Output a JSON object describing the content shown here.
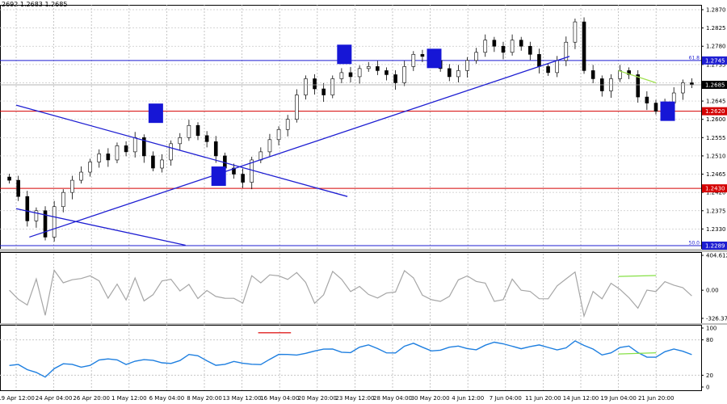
{
  "header": {
    "quote": "2692 1.2683 1.2685"
  },
  "chart_data": {
    "type": "candlestick",
    "x_ticks": [
      "19 Apr 12:00",
      "24 Apr 04:00",
      "26 Apr 20:00",
      "1 May 12:00",
      "6 May 04:00",
      "8 May 20:00",
      "13 May 12:00",
      "16 May 04:00",
      "20 May 20:00",
      "23 May 12:00",
      "28 May 04:00",
      "30 May 20:00",
      "4 Jun 12:00",
      "7 Jun 04:00",
      "11 Jun 20:00",
      "14 Jun 12:00",
      "19 Jun 04:00",
      "21 Jun 20:00"
    ],
    "price_panel": {
      "ylim": [
        1.2289,
        1.287
      ],
      "y_ticks": [
        "1.2870",
        "1.2825",
        "1.2780",
        "1.2735",
        "1.2690",
        "1.2645",
        "1.2600",
        "1.2555",
        "1.2510",
        "1.2465",
        "1.2420",
        "1.2375",
        "1.2330"
      ],
      "candles": [
        1.245,
        1.241,
        1.235,
        1.2375,
        1.231,
        1.2385,
        1.242,
        1.245,
        1.247,
        1.2495,
        1.2515,
        1.25,
        1.2535,
        1.252,
        1.2555,
        1.251,
        1.248,
        1.25,
        1.254,
        1.2555,
        1.2585,
        1.256,
        1.2545,
        1.251,
        1.248,
        1.2465,
        1.2445,
        1.25,
        1.252,
        1.255,
        1.2575,
        1.26,
        1.266,
        1.27,
        1.2675,
        1.266,
        1.27,
        1.2715,
        1.2705,
        1.2725,
        1.273,
        1.272,
        1.271,
        1.269,
        1.273,
        1.276,
        1.2755,
        1.2745,
        1.2725,
        1.2705,
        1.272,
        1.2745,
        1.2765,
        1.2795,
        1.278,
        1.2765,
        1.2795,
        1.278,
        1.276,
        1.273,
        1.2715,
        1.2745,
        1.279,
        1.284,
        1.272,
        1.27,
        1.267,
        1.27,
        1.272,
        1.271,
        1.2655,
        1.264,
        1.262,
        1.264,
        1.2665,
        1.269,
        1.2685
      ],
      "levels": [
        {
          "value": 1.2745,
          "label": "1.2745",
          "color": "#1e1ed2",
          "note": "61.8"
        },
        {
          "value": 1.262,
          "label": "1.2620",
          "color": "#d40000",
          "note": ""
        },
        {
          "value": 1.243,
          "label": "1.2430",
          "color": "#d40000",
          "note": ""
        },
        {
          "value": 1.2289,
          "label": "1.2289",
          "color": "#1e1ed2",
          "note": "50.0"
        }
      ],
      "current": {
        "value": 1.2685,
        "label": "1.2685"
      },
      "trendlines": [
        {
          "from": [
            "19 Apr 12:00",
            1.2635
          ],
          "to": [
            "22 May 12:00",
            1.241
          ],
          "color": "#1e1ed2"
        },
        {
          "from": [
            "19 Apr 12:00",
            1.238
          ],
          "to": [
            "7 May 12:00",
            1.229
          ],
          "color": "#1e1ed2"
        },
        {
          "from": [
            "20 Apr 04:00",
            1.231
          ],
          "to": [
            "14 Jun 04:00",
            1.2755
          ],
          "color": "#1e1ed2"
        },
        {
          "from": [
            "19 Jun 04:00",
            1.272
          ],
          "to": [
            "21 Jun 20:00",
            1.269
          ],
          "color": "#a0e050"
        }
      ]
    },
    "cci_panel": {
      "y_ticks": [
        "404.6122",
        "0.00",
        "-326.377"
      ],
      "ylim": [
        -326.377,
        404.6122
      ]
    },
    "rsi_panel": {
      "y_ticks": [
        "100",
        "80",
        "20",
        "0"
      ],
      "ylim": [
        0,
        100
      ]
    },
    "colors": {
      "candles": "#000000",
      "cci": "#a6a6a6",
      "rsi": "#1e7fe0",
      "boxes": "#1616d6",
      "divergence": "#86e046",
      "rsi_mark": "#e02020"
    }
  }
}
